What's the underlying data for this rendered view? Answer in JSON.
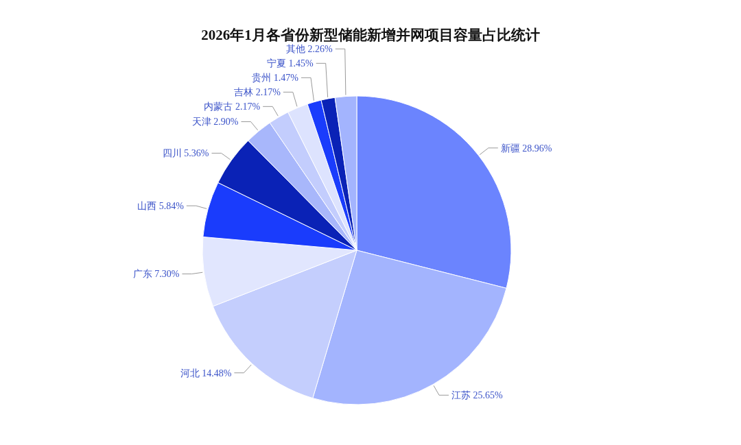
{
  "chart_data": {
    "type": "pie",
    "title": "2026年1月各省份新型储能新增并网项目容量占比统计",
    "categories": [
      "新疆",
      "江苏",
      "河北",
      "广东",
      "山西",
      "四川",
      "天津",
      "内蒙古",
      "吉林",
      "贵州",
      "宁夏",
      "其他"
    ],
    "values": [
      28.96,
      25.65,
      14.48,
      7.3,
      5.84,
      5.36,
      2.9,
      2.17,
      2.17,
      1.47,
      1.45,
      2.26
    ],
    "value_labels": [
      "28.96%",
      "25.65%",
      "14.48%",
      "7.30%",
      "5.84%",
      "5.36%",
      "2.90%",
      "2.17%",
      "2.17%",
      "1.47%",
      "1.45%",
      "2.26%"
    ],
    "colors": [
      "#6b84fe",
      "#a3b4fe",
      "#c4cefd",
      "#e1e6fe",
      "#1a3cfc",
      "#0a22b6",
      "#a8b7fb",
      "#c3cdfd",
      "#dde3fe",
      "#1a3cfc",
      "#0a22b6",
      "#a3b4fe"
    ]
  }
}
